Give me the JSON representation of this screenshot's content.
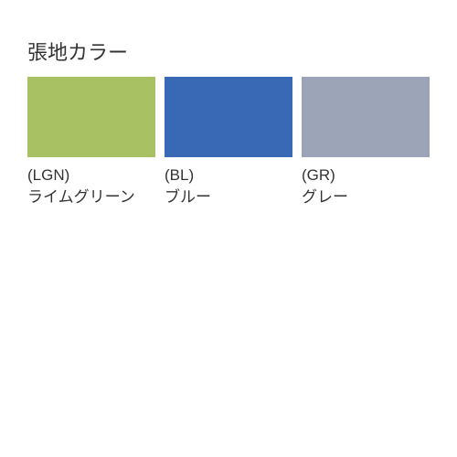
{
  "title": "張地カラー",
  "swatches": [
    {
      "code": "(LGN)",
      "name": "ライムグリーン",
      "color": "#a8c162"
    },
    {
      "code": "(BL)",
      "name": "ブルー",
      "color": "#3968b5"
    },
    {
      "code": "(GR)",
      "name": "グレー",
      "color": "#9ca5b8"
    }
  ],
  "layout": {
    "swatch_width": 140,
    "swatch_height": 88,
    "gap": 10,
    "title_fontsize": 22,
    "label_fontsize": 17,
    "background": "#ffffff",
    "text_color": "#333333"
  }
}
